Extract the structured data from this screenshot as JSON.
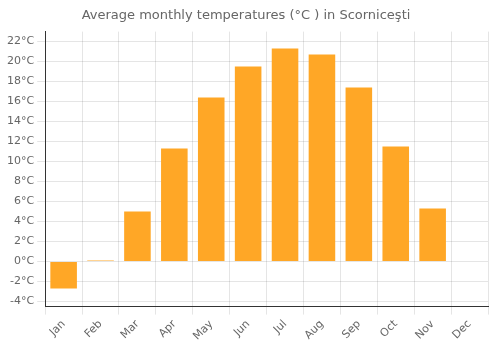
{
  "chart_data": {
    "type": "bar",
    "title": "Average monthly temperatures (°C ) in Scorniceşti",
    "categories": [
      "Jan",
      "Feb",
      "Mar",
      "Apr",
      "May",
      "Jun",
      "Jul",
      "Aug",
      "Sep",
      "Oct",
      "Nov",
      "Dec"
    ],
    "values": [
      -2.7,
      0.1,
      5.0,
      11.3,
      16.4,
      19.5,
      21.3,
      20.7,
      17.4,
      11.5,
      5.3,
      0.0
    ],
    "color": "#FFA726",
    "ylim": [
      -4.5,
      23
    ],
    "yticks": [
      {
        "value": -4,
        "label": "-4°C"
      },
      {
        "value": -2,
        "label": "-2°C"
      },
      {
        "value": 0,
        "label": "0°C"
      },
      {
        "value": 2,
        "label": "2°C"
      },
      {
        "value": 4,
        "label": "4°C"
      },
      {
        "value": 6,
        "label": "6°C"
      },
      {
        "value": 8,
        "label": "8°C"
      },
      {
        "value": 10,
        "label": "10°C"
      },
      {
        "value": 12,
        "label": "12°C"
      },
      {
        "value": 14,
        "label": "14°C"
      },
      {
        "value": 16,
        "label": "16°C"
      },
      {
        "value": 18,
        "label": "18°C"
      },
      {
        "value": 20,
        "label": "20°C"
      },
      {
        "value": 22,
        "label": "22°C"
      }
    ],
    "grid": true
  }
}
